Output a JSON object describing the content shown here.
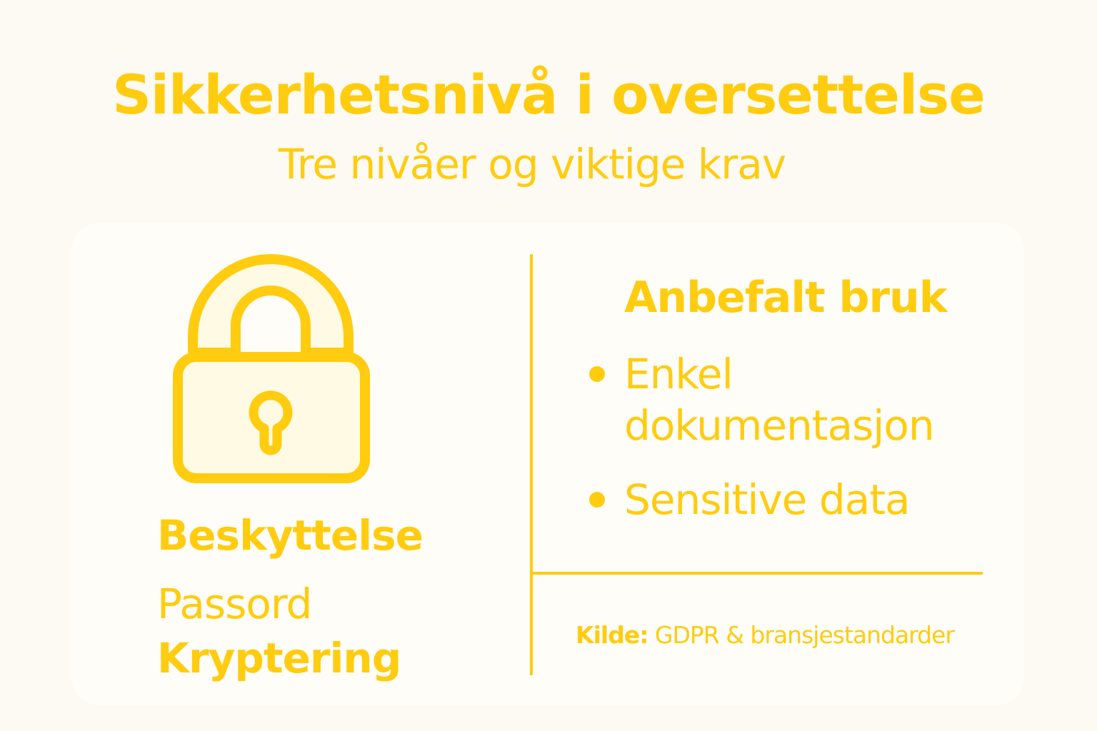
{
  "header": {
    "title": "Sikkerhetsnivå i oversettelse",
    "subtitle": "Tre nivåer og viktige krav"
  },
  "left_panel": {
    "icon": "padlock-icon",
    "heading": "Beskyttelse",
    "items": [
      "Passord",
      "Kryptering"
    ]
  },
  "right_panel": {
    "heading": "Anbefalt bruk",
    "bullets": [
      "Enkel dokumentasjon",
      "Sensitive data"
    ]
  },
  "source": {
    "label": "Kilde:",
    "text": "GDPR & bransjestandarder"
  },
  "colors": {
    "accent": "#ffcc0f",
    "background": "#fcfaf2",
    "card": "#fefdf8",
    "lock_fill": "#fffae3"
  }
}
